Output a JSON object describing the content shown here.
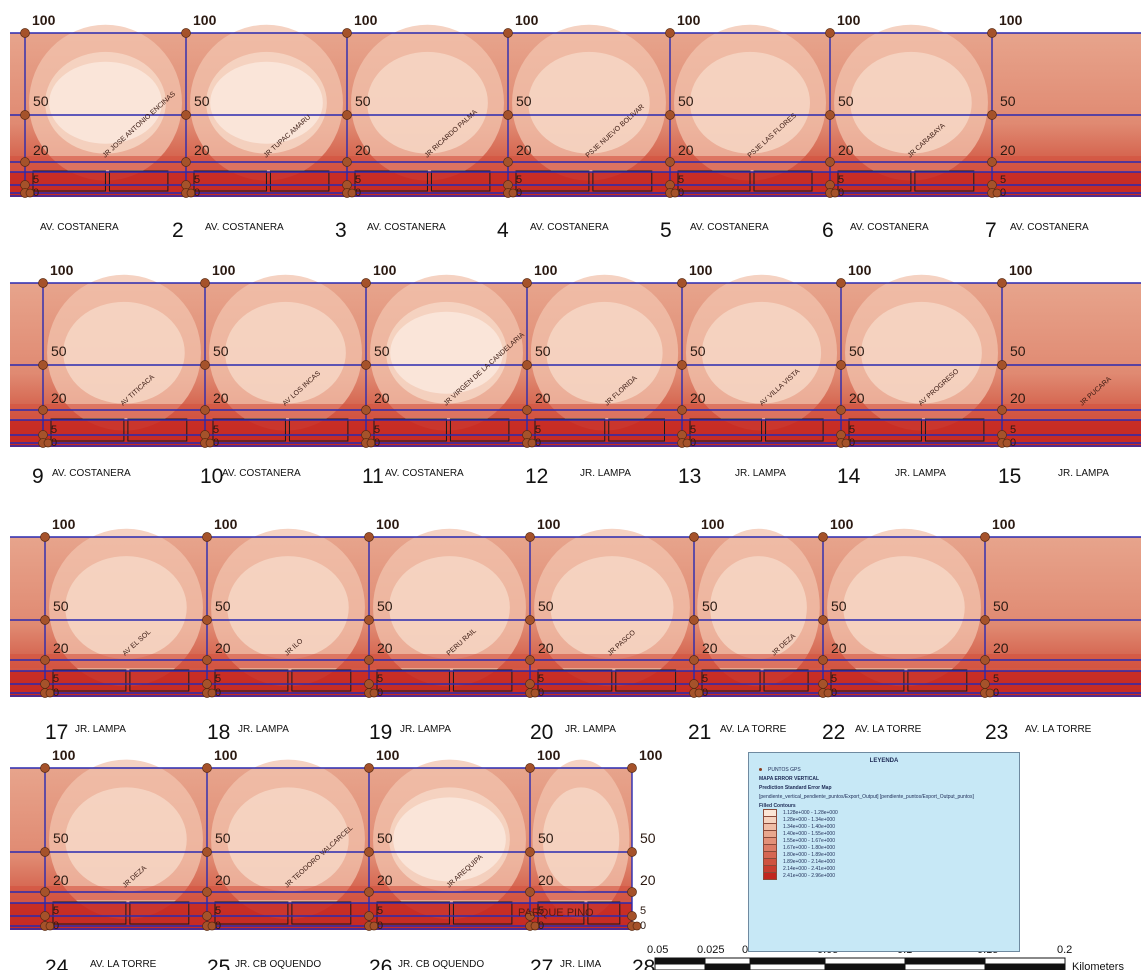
{
  "grid_labels": [
    "100",
    "50",
    "20",
    "5",
    "0"
  ],
  "panels": [
    {
      "segments": [
        "",
        "2",
        "3",
        "4",
        "5",
        "6",
        "7"
      ],
      "avenues": [
        "AV. COSTANERA",
        "AV. COSTANERA",
        "AV. COSTANERA",
        "AV. COSTANERA",
        "AV. COSTANERA",
        "AV. COSTANERA",
        "AV. COSTANERA"
      ],
      "streets": [
        "JR JOSE ANTONIO ENCINAS",
        "JR TUPAC AMARU",
        "JR RICARDO PALMA",
        "PSJE NUEVO BOLIVAR",
        "PSJE LAS FLORES",
        "JR CARABAYA"
      ]
    },
    {
      "segments": [
        "9",
        "10",
        "11",
        "12",
        "13",
        "14",
        "15"
      ],
      "avenues": [
        "AV. COSTANERA",
        "AV. COSTANERA",
        "AV. COSTANERA",
        "JR. LAMPA",
        "JR. LAMPA",
        "JR. LAMPA",
        "JR. LAMPA"
      ],
      "streets": [
        "AV TITICACA",
        "AV LOS INCAS",
        "JR VIRGEN DE LA CANDELARIA",
        "JR FLORIDA",
        "AV VILLA VISTA",
        "AV PROGRESO",
        "JR PUCARA"
      ]
    },
    {
      "segments": [
        "17",
        "18",
        "19",
        "20",
        "21",
        "22",
        "23"
      ],
      "avenues": [
        "JR. LAMPA",
        "JR. LAMPA",
        "JR. LAMPA",
        "JR. LAMPA",
        "AV. LA TORRE",
        "AV. LA TORRE",
        "AV. LA TORRE"
      ],
      "streets": [
        "AV EL SOL",
        "JR ILO",
        "PERU RAIL",
        "JR PASCO",
        "JR DEZA"
      ]
    },
    {
      "segments": [
        "24",
        "25",
        "26",
        "27",
        "28"
      ],
      "avenues": [
        "AV. LA TORRE",
        "JR. CB OQUENDO",
        "JR. CB OQUENDO",
        "JR. LIMA"
      ],
      "streets": [
        "JR DEZA",
        "JR TEODORO VALCARCEL",
        "JR AREQUIPA"
      ],
      "place": "PARQUE PINO"
    }
  ],
  "legend": {
    "title": "LEYENDA",
    "point_label": "PUNTOS GPS",
    "layer_title": "MAPA ERROR VERTICAL",
    "subtitle": "Prediction Standard Error Map",
    "source": "[pendiente_vertical_pendiente_puntos/Export_Output] [pendiente_puntos/Export_Output_puntos]",
    "filled_label": "Filled Contours",
    "classes": [
      {
        "range": "1.128e+000 - 1.28e+000",
        "color": "#fbe6d6"
      },
      {
        "range": "1.28e+000 - 1.34e+000",
        "color": "#f5d3bf"
      },
      {
        "range": "1.34e+000 - 1.40e+000",
        "color": "#efbda6"
      },
      {
        "range": "1.40e+000 - 1.55e+000",
        "color": "#e8a78e"
      },
      {
        "range": "1.55e+000 - 1.67e+000",
        "color": "#e39179"
      },
      {
        "range": "1.67e+000 - 1.80e+000",
        "color": "#dc7c66"
      },
      {
        "range": "1.80e+000 - 1.89e+000",
        "color": "#d56753"
      },
      {
        "range": "1.89e+000 - 2.14e+000",
        "color": "#cf5341"
      },
      {
        "range": "2.14e+000 - 2.41e+000",
        "color": "#c83d30"
      },
      {
        "range": "2.41e+000 - 2.96e+000",
        "color": "#c1261f"
      }
    ]
  },
  "scale": {
    "ticks": [
      "0.05",
      "0.025",
      "0",
      "0.05",
      "0.1",
      "0.15",
      "0.2"
    ],
    "unit": "Kilometers"
  },
  "colors": {
    "grid": "#2a2ab0",
    "node": "#a5522a",
    "building": "#1a1a1a"
  }
}
